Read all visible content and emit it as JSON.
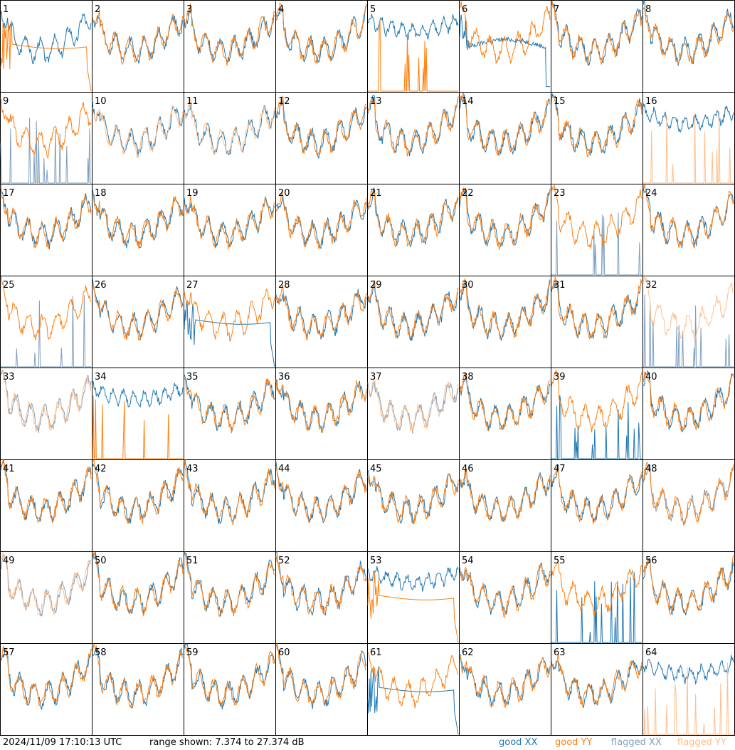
{
  "chart_data": {
    "type": "line",
    "layout": "small-multiples 8x8",
    "panel_labels": [
      "1",
      "2",
      "3",
      "4",
      "5",
      "6",
      "7",
      "8",
      "9",
      "10",
      "11",
      "12",
      "13",
      "14",
      "15",
      "16",
      "17",
      "18",
      "19",
      "20",
      "21",
      "22",
      "23",
      "24",
      "25",
      "26",
      "27",
      "28",
      "29",
      "30",
      "31",
      "32",
      "33",
      "34",
      "35",
      "36",
      "37",
      "38",
      "39",
      "40",
      "41",
      "42",
      "43",
      "44",
      "45",
      "46",
      "47",
      "48",
      "49",
      "50",
      "51",
      "52",
      "53",
      "54",
      "55",
      "56",
      "57",
      "58",
      "59",
      "60",
      "61",
      "62",
      "63",
      "64"
    ],
    "ylim": [
      7.374,
      27.374
    ],
    "yunit": "dB",
    "series_legend": [
      {
        "name": "good XX",
        "color": "#1f77b4"
      },
      {
        "name": "good YY",
        "color": "#ff7f0e"
      },
      {
        "name": "flagged XX",
        "color": "#7f9fbf"
      },
      {
        "name": "flagged YY",
        "color": "#ffbf8a"
      }
    ],
    "panel_series_kinds": {
      "1": [
        "xx:normal",
        "yy:hump"
      ],
      "5": [
        "xx:high",
        "yy:spikes"
      ],
      "6": [
        "xx:dip",
        "yy:normal"
      ],
      "9": [
        "fxx:spikes",
        "yy:normal"
      ],
      "10": [
        "xx:normal",
        "fyy:normal"
      ],
      "11": [
        "xx:normal",
        "fyy:normal"
      ],
      "16": [
        "xx:high",
        "fyy:spikes"
      ],
      "23": [
        "fxx:spikes",
        "yy:normal"
      ],
      "25": [
        "fxx:spikes",
        "yy:normal"
      ],
      "27": [
        "xx:hump",
        "yy:normal"
      ],
      "32": [
        "fxx:spikes",
        "fyy:normal"
      ],
      "33": [
        "fxx:normal",
        "fyy:normal"
      ],
      "34": [
        "xx:high",
        "yy:spikes"
      ],
      "37": [
        "fxx:normal",
        "fyy:normal"
      ],
      "39": [
        "xx:spikes",
        "yy:normal"
      ],
      "48": [
        "fxx:normal",
        "yy:normal"
      ],
      "49": [
        "fxx:normal",
        "fyy:normal"
      ],
      "53": [
        "xx:high",
        "yy:hump"
      ],
      "55": [
        "xx:spikes",
        "yy:normal"
      ],
      "61": [
        "xx:hump",
        "yy:normal"
      ],
      "64": [
        "xx:high",
        "fyy:spikes"
      ]
    }
  },
  "footer": {
    "timestamp": "2024/11/09 17:10:13 UTC",
    "range_text": "range shown: 7.374 to 27.374 dB",
    "legend_good_xx": "good XX",
    "legend_good_yy": "good YY",
    "legend_flagged_xx": "flagged XX",
    "legend_flagged_yy": "flagged YY"
  }
}
